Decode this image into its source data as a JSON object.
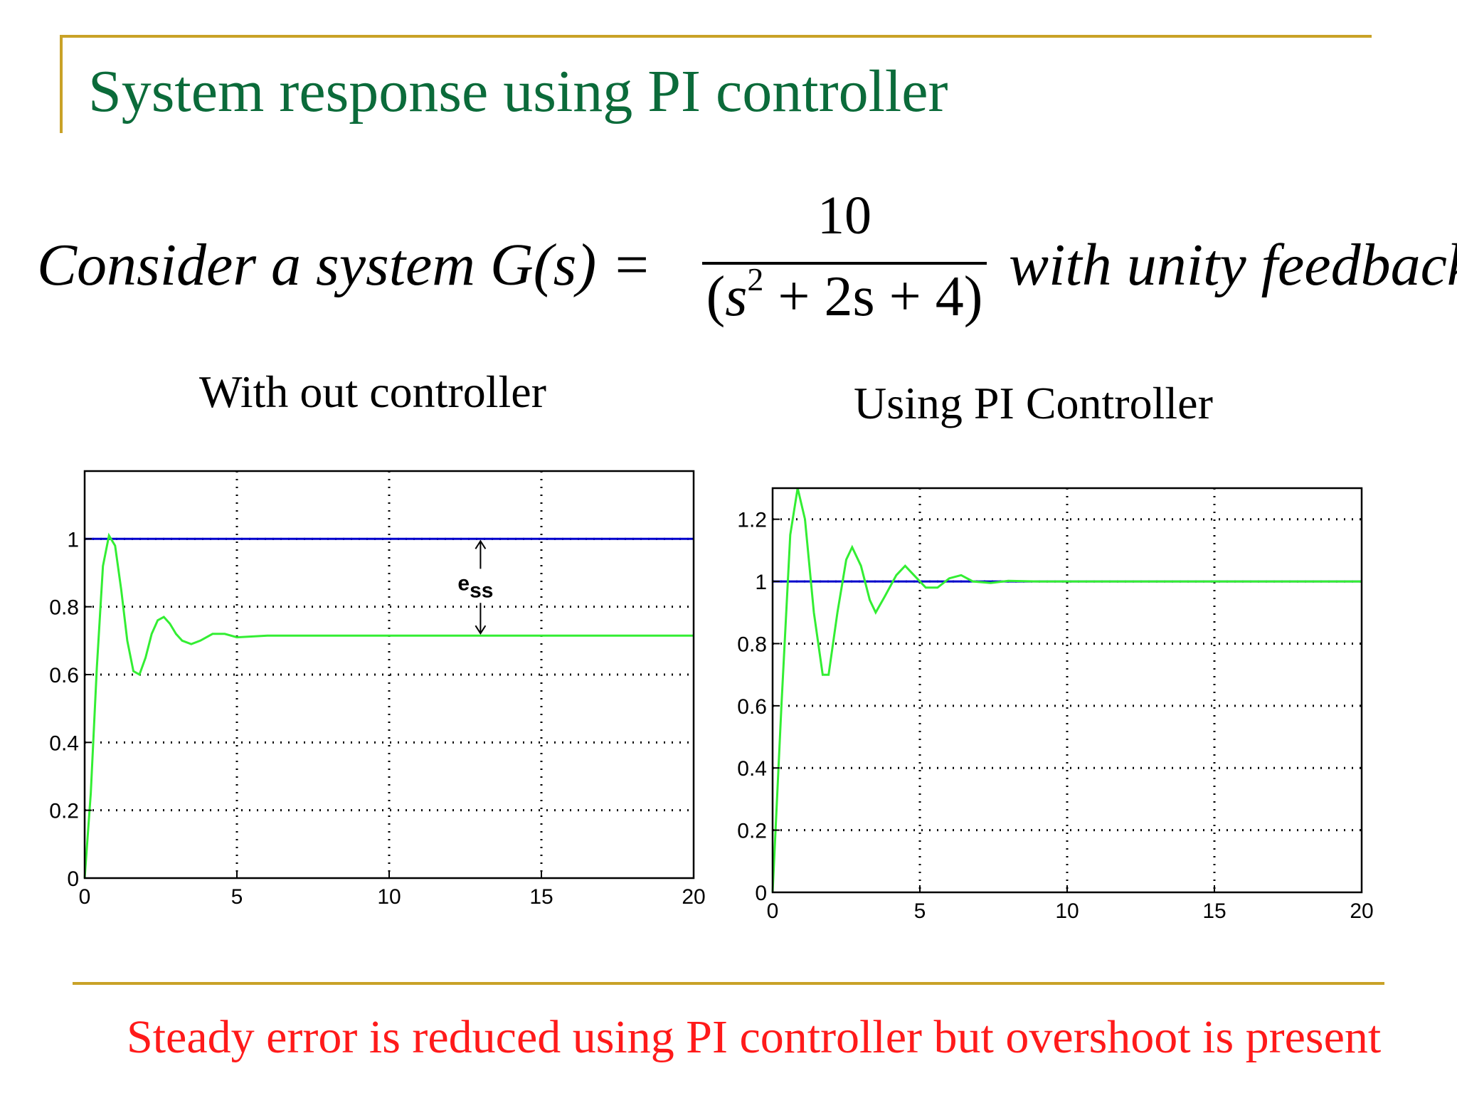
{
  "slide": {
    "title": "System response using PI controller",
    "equation": {
      "lhs": "Consider a system G(s) =",
      "numerator": "10",
      "denominator_var": "s",
      "denominator_exp": "2",
      "denominator_rest": " + 2s + 4",
      "rhs": "with unity  feedback"
    },
    "plot_titles": [
      "With out controller",
      "Using PI Controller"
    ],
    "conclusion": "Steady error is reduced using PI controller but overshoot is present",
    "colors": {
      "title": "#0b6b3a",
      "rule": "#c9a227",
      "conclusion": "#ff1a1a",
      "reference": "#0000cc",
      "response": "#33ee33"
    }
  },
  "chart_data": [
    {
      "type": "line",
      "title": "With out controller",
      "xlim": [
        0,
        20
      ],
      "ylim": [
        0,
        1.2
      ],
      "xticks": [
        "0",
        "5",
        "10",
        "15",
        "20"
      ],
      "yticks": [
        "0",
        "0.2",
        "0.4",
        "0.6",
        "0.8",
        "1"
      ],
      "grid": true,
      "series": [
        {
          "values": [
            [
              0,
              1
            ],
            [
              20,
              1
            ]
          ]
        },
        {
          "values": [
            [
              0,
              0
            ],
            [
              0.2,
              0.25
            ],
            [
              0.4,
              0.62
            ],
            [
              0.6,
              0.92
            ],
            [
              0.8,
              1.01
            ],
            [
              1.0,
              0.98
            ],
            [
              1.2,
              0.85
            ],
            [
              1.4,
              0.7
            ],
            [
              1.6,
              0.61
            ],
            [
              1.8,
              0.6
            ],
            [
              2.0,
              0.65
            ],
            [
              2.2,
              0.72
            ],
            [
              2.4,
              0.76
            ],
            [
              2.6,
              0.77
            ],
            [
              2.8,
              0.75
            ],
            [
              3.0,
              0.72
            ],
            [
              3.2,
              0.7
            ],
            [
              3.5,
              0.69
            ],
            [
              3.8,
              0.7
            ],
            [
              4.2,
              0.72
            ],
            [
              4.6,
              0.72
            ],
            [
              5.0,
              0.71
            ],
            [
              6,
              0.715
            ],
            [
              20,
              0.715
            ]
          ]
        }
      ],
      "annotation": {
        "label_main": "e",
        "label_sub": "ss",
        "x": 13,
        "y_from": 0.715,
        "y_to": 1
      }
    },
    {
      "type": "line",
      "title": "Using PI Controller",
      "xlim": [
        0,
        20
      ],
      "ylim": [
        0,
        1.3
      ],
      "xticks": [
        "0",
        "5",
        "10",
        "15",
        "20"
      ],
      "yticks": [
        "0",
        "0.2",
        "0.4",
        "0.6",
        "0.8",
        "1",
        "1.2"
      ],
      "grid": true,
      "series": [
        {
          "values": [
            [
              0,
              1
            ],
            [
              20,
              1
            ]
          ]
        },
        {
          "values": [
            [
              0,
              0
            ],
            [
              0.3,
              0.6
            ],
            [
              0.6,
              1.15
            ],
            [
              0.85,
              1.3
            ],
            [
              1.1,
              1.2
            ],
            [
              1.4,
              0.9
            ],
            [
              1.7,
              0.7
            ],
            [
              1.9,
              0.7
            ],
            [
              2.2,
              0.9
            ],
            [
              2.5,
              1.07
            ],
            [
              2.7,
              1.11
            ],
            [
              3.0,
              1.05
            ],
            [
              3.3,
              0.94
            ],
            [
              3.5,
              0.9
            ],
            [
              3.8,
              0.95
            ],
            [
              4.2,
              1.02
            ],
            [
              4.5,
              1.05
            ],
            [
              4.8,
              1.02
            ],
            [
              5.2,
              0.98
            ],
            [
              5.6,
              0.98
            ],
            [
              6,
              1.01
            ],
            [
              6.4,
              1.02
            ],
            [
              6.8,
              1.0
            ],
            [
              7.4,
              0.995
            ],
            [
              8,
              1.002
            ],
            [
              9,
              1.0
            ],
            [
              20,
              1.0
            ]
          ]
        }
      ]
    }
  ]
}
